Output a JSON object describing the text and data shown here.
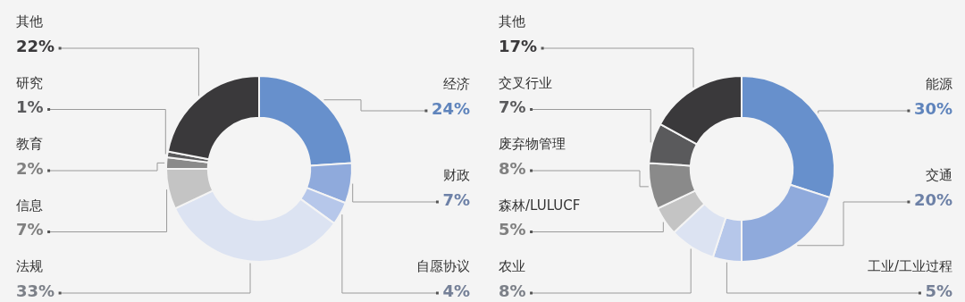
{
  "chart_data": [
    {
      "type": "donut",
      "categories": [
        "经济",
        "财政",
        "自愿协议",
        "法规",
        "信息",
        "教育",
        "研究",
        "其他"
      ],
      "values": [
        24,
        7,
        4,
        33,
        7,
        2,
        1,
        22
      ],
      "value_labels": [
        "24%",
        "7%",
        "4%",
        "33%",
        "7%",
        "2%",
        "1%",
        "22%"
      ],
      "colors": [
        "#6790cc",
        "#8faadc",
        "#b6c7ea",
        "#dce3f2",
        "#c4c4c4",
        "#8a8a8a",
        "#5a5a5c",
        "#3a393b"
      ]
    },
    {
      "type": "donut",
      "categories": [
        "能源",
        "交通",
        "工业/工业过程",
        "农业",
        "森林/LULUCF",
        "废弃物管理",
        "交叉行业",
        "其他"
      ],
      "values": [
        30,
        20,
        5,
        8,
        5,
        8,
        7,
        17
      ],
      "value_labels": [
        "30%",
        "20%",
        "5%",
        "8%",
        "5%",
        "8%",
        "7%",
        "17%"
      ],
      "colors": [
        "#6790cc",
        "#8faadc",
        "#b6c7ea",
        "#dce3f2",
        "#c4c4c4",
        "#8a8a8a",
        "#5a5a5c",
        "#3a393b"
      ]
    }
  ]
}
